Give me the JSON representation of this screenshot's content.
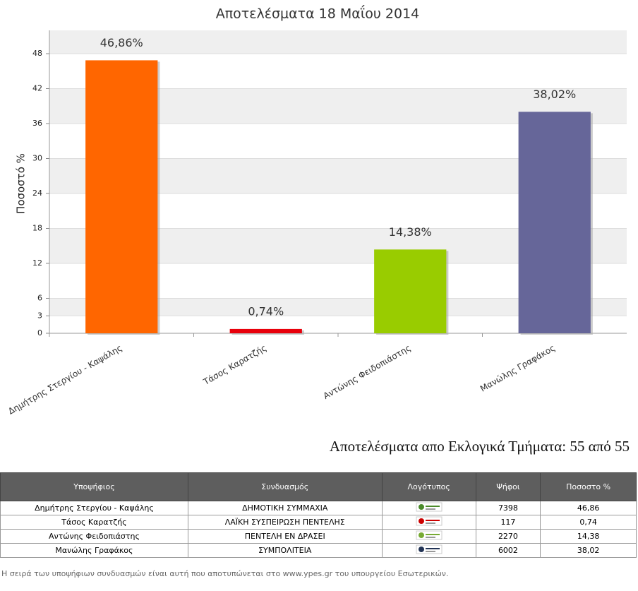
{
  "chart_data": {
    "type": "bar",
    "title": "Αποτελέσματα 18 Μαΐου 2014",
    "y_label": "Ποσοστό %",
    "categories": [
      "Δημήτρης Στεργίου - Καψάλης",
      "Τάσος Καρατζής",
      "Αντώνης Φειδοπιάστης",
      "Μανώλης Γραφάκος"
    ],
    "values": [
      46.86,
      0.74,
      14.38,
      38.02
    ],
    "value_labels": [
      "46,86%",
      "0,74%",
      "14,38%",
      "38,02%"
    ],
    "colors": [
      "#ff6600",
      "#e8000b",
      "#99cc00",
      "#666699"
    ],
    "ylim": [
      0,
      52
    ],
    "yticks": [
      0,
      3,
      6,
      12,
      18,
      24,
      30,
      36,
      42,
      48
    ],
    "grid": true
  },
  "heading": "Αποτελέσματα απο Εκλογικά Τμήματα: 55 από 55",
  "table": {
    "headers": [
      "Υποψήφιος",
      "Συνδυασμός",
      "Λογότυπος",
      "Ψήφοι",
      "Ποσοστο %"
    ],
    "rows": [
      [
        "Δημήτρης Στεργίου - Καψάλης",
        "ΔΗΜΟΤΙΚΗ ΣΥΜΜΑΧΙΑ",
        "7398",
        "46,86"
      ],
      [
        "Τάσος Καρατζής",
        "ΛΑΪΚΗ ΣΥΣΠΕΙΡΩΣΗ ΠΕΝΤΕΛΗΣ",
        "117",
        "0,74"
      ],
      [
        "Αντώνης Φειδοπιάστης",
        "ΠΕΝΤΕΛΗ ΕΝ ΔΡΑΣΕΙ",
        "2270",
        "14,38"
      ],
      [
        "Μανώλης Γραφάκος",
        "ΣΥΜΠΟΛΙΤΕΙΑ",
        "6002",
        "38,02"
      ]
    ]
  },
  "footnote": "Η σειρά των υποψήφιων συνδυασμών είναι αυτή που αποτυπώνεται στο www.ypes.gr του υπουργείου Εσωτερικών."
}
